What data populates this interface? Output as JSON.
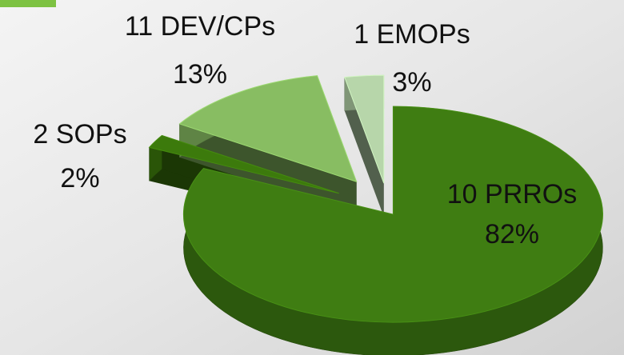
{
  "chart_data": {
    "type": "pie",
    "categories": [
      "10 PRROs",
      "2 SOPs",
      "11 DEV/CPs",
      "1 EMOPs"
    ],
    "values": [
      82,
      2,
      13,
      3
    ],
    "value_labels": [
      "82%",
      "2%",
      "13%",
      "3%"
    ],
    "colors": [
      "#3f7d12",
      "#3c7a0c",
      "#88bd62",
      "#b7d6aa"
    ]
  }
}
